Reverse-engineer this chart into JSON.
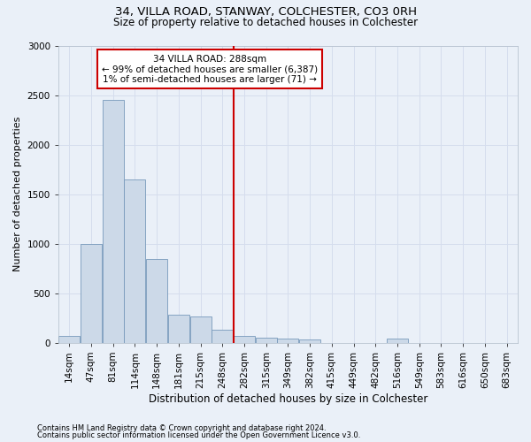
{
  "title1": "34, VILLA ROAD, STANWAY, COLCHESTER, CO3 0RH",
  "title2": "Size of property relative to detached houses in Colchester",
  "xlabel": "Distribution of detached houses by size in Colchester",
  "ylabel": "Number of detached properties",
  "footnote1": "Contains HM Land Registry data © Crown copyright and database right 2024.",
  "footnote2": "Contains public sector information licensed under the Open Government Licence v3.0.",
  "bar_labels": [
    "14sqm",
    "47sqm",
    "81sqm",
    "114sqm",
    "148sqm",
    "181sqm",
    "215sqm",
    "248sqm",
    "282sqm",
    "315sqm",
    "349sqm",
    "382sqm",
    "415sqm",
    "449sqm",
    "482sqm",
    "516sqm",
    "549sqm",
    "583sqm",
    "616sqm",
    "650sqm",
    "683sqm"
  ],
  "bar_values": [
    70,
    1000,
    2450,
    1650,
    850,
    280,
    270,
    130,
    70,
    55,
    45,
    35,
    0,
    0,
    0,
    45,
    0,
    0,
    0,
    0,
    0
  ],
  "bar_color": "#ccd9e8",
  "bar_edge_color": "#7799bb",
  "grid_color": "#d5dded",
  "bg_color": "#eaf0f8",
  "annotation_text": "34 VILLA ROAD: 288sqm\n← 99% of detached houses are smaller (6,387)\n1% of semi-detached houses are larger (71) →",
  "vline_x_idx": 8,
  "vline_color": "#cc0000",
  "annotation_box_color": "#cc0000",
  "ylim": [
    0,
    3000
  ],
  "yticks": [
    0,
    500,
    1000,
    1500,
    2000,
    2500,
    3000
  ],
  "title1_fontsize": 9.5,
  "title2_fontsize": 8.5,
  "xlabel_fontsize": 8.5,
  "ylabel_fontsize": 8,
  "tick_fontsize": 7.5,
  "footnote_fontsize": 6
}
